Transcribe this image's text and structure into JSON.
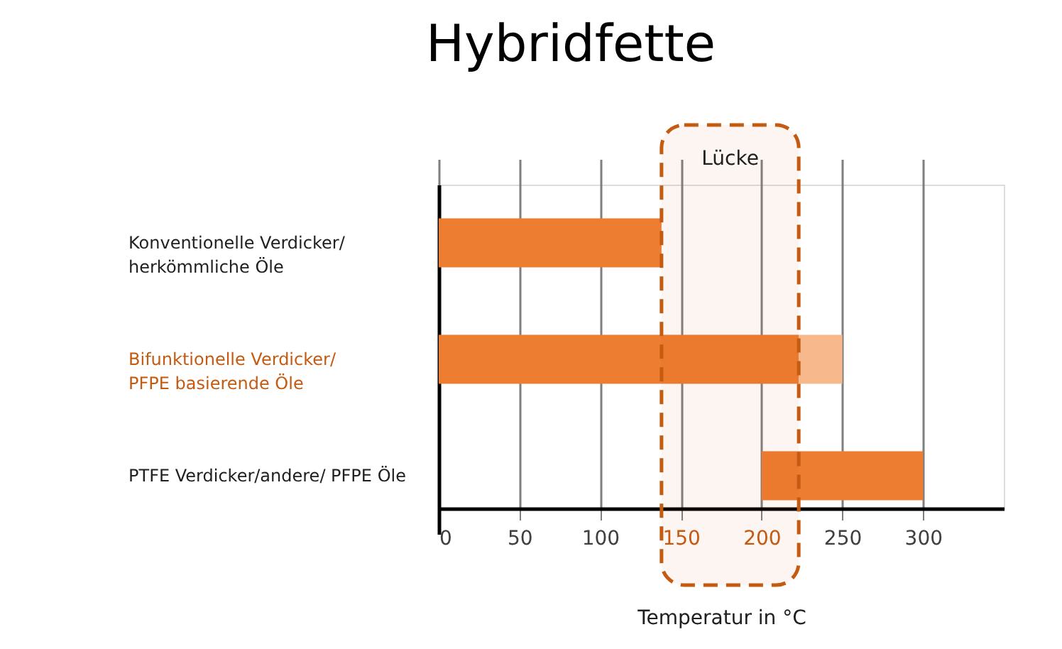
{
  "chart_data": {
    "type": "bar",
    "orientation": "horizontal",
    "title": "Hybridfette",
    "xlabel": "Temperatur in °C",
    "categories": [
      "Konventionelle Verdicker/\nherkömmliche Öle",
      "Bifunktionelle Verdicker/\nPFPE basierende Öle",
      "PTFE Verdicker/andere/ PFPE Öle"
    ],
    "series": [
      {
        "color": "#ed7d31",
        "base": [
          0,
          0,
          200
        ],
        "values": [
          138,
          223,
          100
        ]
      },
      {
        "color": "#f7b98c",
        "base": [
          null,
          223,
          null
        ],
        "values": [
          null,
          27,
          null
        ]
      }
    ],
    "xlim": [
      0,
      350
    ],
    "xticks": [
      0,
      50,
      100,
      150,
      200,
      250,
      300
    ],
    "grid": "x",
    "legend": false,
    "bands": [
      {
        "axis": "x",
        "from": 138,
        "to": 223,
        "label": "Lücke",
        "color": "#c55a11"
      }
    ]
  }
}
